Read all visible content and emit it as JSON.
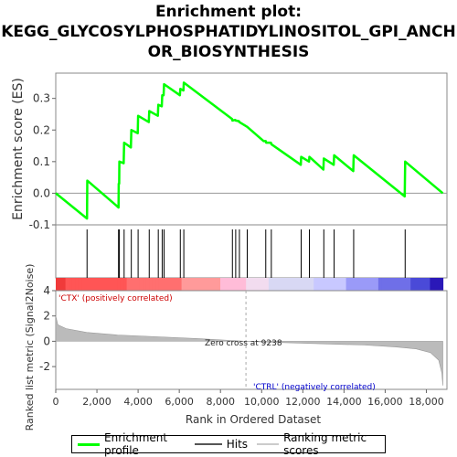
{
  "title_line1": "Enrichment plot:",
  "title_line2": "KEGG_GLYCOSYLPHOSPHATIDYLINOSITOL_GPI_ANCH",
  "title_line3": "OR_BIOSYNTHESIS",
  "colors": {
    "profile": "#00ff00",
    "hits": "#000000",
    "metric_fill": "#bbbbbb",
    "pos_label": "#cc0000",
    "neg_label": "#0000cc"
  },
  "chart_data": [
    {
      "type": "line",
      "ylabel": "Enrichment score (ES)",
      "ylim": [
        -0.1,
        0.38
      ],
      "yticks": [
        -0.1,
        0.0,
        0.1,
        0.2,
        0.3
      ],
      "yticklabels": [
        "-0.1",
        "0.0",
        "0.1",
        "0.2",
        "0.3"
      ],
      "xlim": [
        0,
        19000
      ],
      "series": [
        {
          "name": "Enrichment profile",
          "points": [
            [
              0,
              0.0
            ],
            [
              1520,
              -0.08
            ],
            [
              1530,
              0.04
            ],
            [
              3050,
              -0.045
            ],
            [
              3060,
              0.03
            ],
            [
              3080,
              0.03
            ],
            [
              3090,
              0.1
            ],
            [
              3300,
              0.095
            ],
            [
              3320,
              0.16
            ],
            [
              3650,
              0.145
            ],
            [
              3670,
              0.2
            ],
            [
              3980,
              0.19
            ],
            [
              4000,
              0.245
            ],
            [
              4520,
              0.225
            ],
            [
              4540,
              0.26
            ],
            [
              4960,
              0.245
            ],
            [
              4980,
              0.28
            ],
            [
              5150,
              0.275
            ],
            [
              5170,
              0.31
            ],
            [
              5240,
              0.31
            ],
            [
              5260,
              0.345
            ],
            [
              6030,
              0.31
            ],
            [
              6050,
              0.33
            ],
            [
              6200,
              0.325
            ],
            [
              6220,
              0.35
            ],
            [
              8560,
              0.235
            ],
            [
              8580,
              0.23
            ],
            [
              8720,
              0.232
            ],
            [
              8740,
              0.23
            ],
            [
              8900,
              0.228
            ],
            [
              8920,
              0.225
            ],
            [
              9300,
              0.21
            ],
            [
              10100,
              0.165
            ],
            [
              10200,
              0.165
            ],
            [
              10220,
              0.16
            ],
            [
              10450,
              0.16
            ],
            [
              10470,
              0.155
            ],
            [
              11900,
              0.09
            ],
            [
              11920,
              0.115
            ],
            [
              12300,
              0.1
            ],
            [
              12320,
              0.115
            ],
            [
              13000,
              0.075
            ],
            [
              13020,
              0.11
            ],
            [
              13500,
              0.09
            ],
            [
              13520,
              0.12
            ],
            [
              14450,
              0.07
            ],
            [
              14470,
              0.12
            ],
            [
              16950,
              -0.01
            ],
            [
              16970,
              0.1
            ],
            [
              18800,
              0.0
            ]
          ]
        }
      ],
      "hits": [
        1520,
        3050,
        3090,
        3320,
        3670,
        4000,
        4540,
        4980,
        5170,
        5260,
        6050,
        6220,
        8580,
        8740,
        8920,
        9300,
        10200,
        10470,
        11920,
        12320,
        13020,
        13520,
        14470,
        16970
      ]
    },
    {
      "type": "area",
      "ylabel": "Ranked list metric (Signal2Noise)",
      "xlabel": "Rank in Ordered Dataset",
      "xlim": [
        0,
        19000
      ],
      "ylim": [
        -3.8,
        4.0
      ],
      "xticks": [
        0,
        2000,
        4000,
        6000,
        8000,
        10000,
        12000,
        14000,
        16000,
        18000
      ],
      "xticklabels": [
        "0",
        "2,000",
        "4,000",
        "6,000",
        "8,000",
        "10,000",
        "12,000",
        "14,000",
        "16,000",
        "18,000"
      ],
      "yticks": [
        -2,
        0,
        2,
        4
      ],
      "yticklabels": [
        "-2",
        "0",
        "2",
        "4"
      ],
      "points": [
        [
          0,
          2.0
        ],
        [
          100,
          1.3
        ],
        [
          500,
          1.0
        ],
        [
          1500,
          0.7
        ],
        [
          3000,
          0.5
        ],
        [
          5000,
          0.35
        ],
        [
          7000,
          0.2
        ],
        [
          9238,
          0.0
        ],
        [
          11000,
          -0.1
        ],
        [
          13000,
          -0.2
        ],
        [
          15000,
          -0.3
        ],
        [
          16500,
          -0.45
        ],
        [
          17500,
          -0.6
        ],
        [
          18200,
          -0.9
        ],
        [
          18600,
          -1.5
        ],
        [
          18750,
          -2.5
        ],
        [
          18800,
          -3.5
        ]
      ],
      "annotations": {
        "zero_cross": "Zero cross at 9238",
        "zero_cross_rank": 9238,
        "pos_label": "'CTX' (positively correlated)",
        "neg_label": "'CTRL' (negatively correlated)"
      }
    }
  ],
  "legend": {
    "profile": "Enrichment profile",
    "hits": "Hits",
    "metric": "Ranking metric scores"
  }
}
